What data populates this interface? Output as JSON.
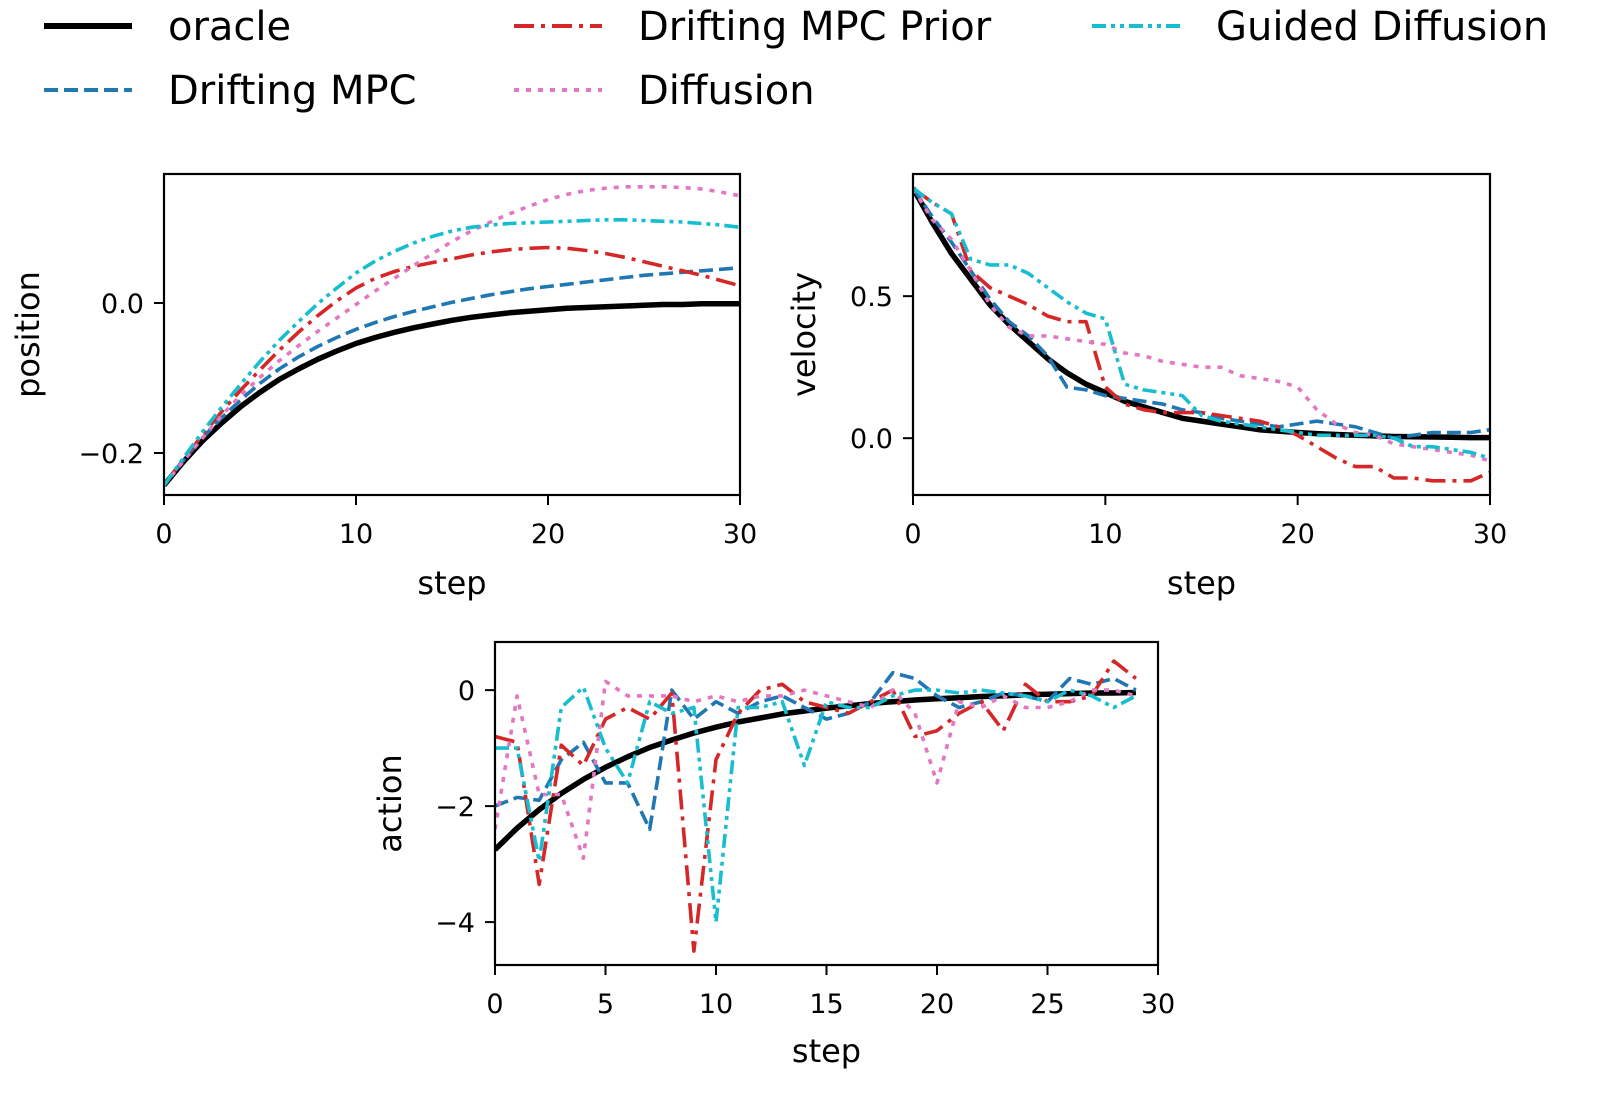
{
  "legend": {
    "placement": "top",
    "entries": [
      {
        "key": "oracle",
        "label": "oracle",
        "color": "#000000",
        "style": "solid"
      },
      {
        "key": "drifting_mpc",
        "label": "Drifting MPC",
        "color": "#1f77b4",
        "style": "dashed"
      },
      {
        "key": "drifting_mpc_prior",
        "label": "Drifting MPC Prior",
        "color": "#d62728",
        "style": "dashdot"
      },
      {
        "key": "diffusion",
        "label": "Diffusion",
        "color": "#e377c2",
        "style": "dotted"
      },
      {
        "key": "guided_diffusion",
        "label": "Guided Diffusion",
        "color": "#17becf",
        "style": "dashdotdot"
      }
    ]
  },
  "chart_data": [
    {
      "id": "position",
      "type": "line",
      "title": "",
      "xlabel": "step",
      "ylabel": "position",
      "xlim": [
        0,
        30
      ],
      "ylim": [
        -0.256,
        0.172
      ],
      "xticks": [
        0,
        10,
        20,
        30
      ],
      "xtick_labels": [
        "0",
        "10",
        "20",
        "30"
      ],
      "yticks": [
        -0.2,
        0.0
      ],
      "ytick_labels": [
        "−0.2",
        "0.0"
      ],
      "grid": false,
      "x": [
        0,
        1,
        2,
        3,
        4,
        5,
        6,
        7,
        8,
        9,
        10,
        11,
        12,
        13,
        14,
        15,
        16,
        17,
        18,
        19,
        20,
        21,
        22,
        23,
        24,
        25,
        26,
        27,
        28,
        29,
        30
      ],
      "series": [
        {
          "key": "oracle",
          "values": [
            -0.243,
            -0.212,
            -0.184,
            -0.16,
            -0.138,
            -0.119,
            -0.102,
            -0.088,
            -0.075,
            -0.064,
            -0.054,
            -0.046,
            -0.039,
            -0.033,
            -0.028,
            -0.023,
            -0.019,
            -0.016,
            -0.013,
            -0.011,
            -0.009,
            -0.007,
            -0.006,
            -0.005,
            -0.004,
            -0.003,
            -0.002,
            -0.002,
            -0.001,
            -0.001,
            -0.001
          ]
        },
        {
          "key": "drifting_mpc",
          "values": [
            -0.243,
            -0.21,
            -0.18,
            -0.153,
            -0.129,
            -0.107,
            -0.088,
            -0.072,
            -0.058,
            -0.046,
            -0.035,
            -0.026,
            -0.018,
            -0.011,
            -0.005,
            0.001,
            0.006,
            0.011,
            0.015,
            0.019,
            0.022,
            0.025,
            0.028,
            0.031,
            0.034,
            0.037,
            0.039,
            0.041,
            0.043,
            0.045,
            0.047
          ]
        },
        {
          "key": "drifting_mpc_prior",
          "values": [
            -0.243,
            -0.209,
            -0.176,
            -0.145,
            -0.116,
            -0.089,
            -0.063,
            -0.039,
            -0.017,
            0.003,
            0.02,
            0.033,
            0.042,
            0.049,
            0.054,
            0.059,
            0.064,
            0.068,
            0.071,
            0.073,
            0.074,
            0.073,
            0.07,
            0.066,
            0.061,
            0.055,
            0.049,
            0.043,
            0.037,
            0.03,
            0.023
          ]
        },
        {
          "key": "diffusion",
          "values": [
            -0.243,
            -0.211,
            -0.18,
            -0.15,
            -0.123,
            -0.099,
            -0.077,
            -0.057,
            -0.038,
            -0.02,
            -0.002,
            0.016,
            0.033,
            0.05,
            0.066,
            0.082,
            0.096,
            0.108,
            0.119,
            0.129,
            0.138,
            0.145,
            0.15,
            0.153,
            0.155,
            0.155,
            0.155,
            0.154,
            0.152,
            0.148,
            0.143
          ]
        },
        {
          "key": "guided_diffusion",
          "values": [
            -0.243,
            -0.207,
            -0.172,
            -0.139,
            -0.108,
            -0.078,
            -0.05,
            -0.025,
            -0.001,
            0.02,
            0.04,
            0.056,
            0.069,
            0.08,
            0.089,
            0.096,
            0.101,
            0.104,
            0.106,
            0.107,
            0.108,
            0.109,
            0.11,
            0.111,
            0.111,
            0.11,
            0.109,
            0.108,
            0.106,
            0.104,
            0.101
          ]
        }
      ]
    },
    {
      "id": "velocity",
      "type": "line",
      "title": "",
      "xlabel": "step",
      "ylabel": "velocity",
      "xlim": [
        0,
        30
      ],
      "ylim": [
        -0.2,
        0.93
      ],
      "xticks": [
        0,
        10,
        20,
        30
      ],
      "xtick_labels": [
        "0",
        "10",
        "20",
        "30"
      ],
      "yticks": [
        0.0,
        0.5
      ],
      "ytick_labels": [
        "0.0",
        "0.5"
      ],
      "grid": false,
      "x": [
        0,
        1,
        2,
        3,
        4,
        5,
        6,
        7,
        8,
        9,
        10,
        11,
        12,
        13,
        14,
        15,
        16,
        17,
        18,
        19,
        20,
        21,
        22,
        23,
        24,
        25,
        26,
        27,
        28,
        29,
        30
      ],
      "series": [
        {
          "key": "oracle",
          "values": [
            0.88,
            0.76,
            0.65,
            0.56,
            0.47,
            0.4,
            0.34,
            0.28,
            0.23,
            0.19,
            0.16,
            0.13,
            0.11,
            0.09,
            0.07,
            0.06,
            0.05,
            0.04,
            0.03,
            0.025,
            0.02,
            0.016,
            0.013,
            0.01,
            0.008,
            0.006,
            0.005,
            0.004,
            0.003,
            0.002,
            0.002
          ]
        },
        {
          "key": "drifting_mpc",
          "values": [
            0.88,
            0.78,
            0.69,
            0.59,
            0.49,
            0.41,
            0.36,
            0.29,
            0.18,
            0.17,
            0.15,
            0.14,
            0.13,
            0.12,
            0.1,
            0.09,
            0.07,
            0.06,
            0.05,
            0.04,
            0.05,
            0.06,
            0.05,
            0.04,
            0.02,
            0.0,
            0.01,
            0.02,
            0.02,
            0.02,
            0.03
          ]
        },
        {
          "key": "drifting_mpc_prior",
          "values": [
            0.88,
            0.83,
            0.79,
            0.59,
            0.53,
            0.5,
            0.47,
            0.43,
            0.41,
            0.41,
            0.18,
            0.12,
            0.1,
            0.09,
            0.09,
            0.09,
            0.08,
            0.07,
            0.06,
            0.04,
            0.01,
            -0.03,
            -0.07,
            -0.1,
            -0.1,
            -0.14,
            -0.14,
            -0.15,
            -0.15,
            -0.15,
            -0.12
          ]
        },
        {
          "key": "diffusion",
          "values": [
            0.88,
            0.77,
            0.7,
            0.59,
            0.47,
            0.39,
            0.36,
            0.36,
            0.35,
            0.34,
            0.33,
            0.3,
            0.29,
            0.27,
            0.26,
            0.25,
            0.25,
            0.22,
            0.21,
            0.2,
            0.18,
            0.1,
            0.05,
            0.02,
            0.01,
            -0.02,
            -0.03,
            -0.04,
            -0.05,
            -0.06,
            -0.08
          ]
        },
        {
          "key": "guided_diffusion",
          "values": [
            0.88,
            0.83,
            0.79,
            0.63,
            0.61,
            0.61,
            0.58,
            0.53,
            0.48,
            0.44,
            0.42,
            0.19,
            0.17,
            0.16,
            0.15,
            0.08,
            0.06,
            0.05,
            0.04,
            0.03,
            0.02,
            0.01,
            0.01,
            0.01,
            0.01,
            0.0,
            -0.03,
            -0.03,
            -0.04,
            -0.05,
            -0.07
          ]
        }
      ]
    },
    {
      "id": "action",
      "type": "line",
      "title": "",
      "xlabel": "step",
      "ylabel": "action",
      "xlim": [
        0,
        30
      ],
      "ylim": [
        -4.74,
        0.83
      ],
      "xticks": [
        0,
        5,
        10,
        15,
        20,
        25,
        30
      ],
      "xtick_labels": [
        "0",
        "5",
        "10",
        "15",
        "20",
        "25",
        "30"
      ],
      "yticks": [
        -4,
        -2,
        0
      ],
      "ytick_labels": [
        "−4",
        "−2",
        "0"
      ],
      "grid": false,
      "x": [
        0,
        1,
        2,
        3,
        4,
        5,
        6,
        7,
        8,
        9,
        10,
        11,
        12,
        13,
        14,
        15,
        16,
        17,
        18,
        19,
        20,
        21,
        22,
        23,
        24,
        25,
        26,
        27,
        28,
        29
      ],
      "series": [
        {
          "key": "oracle",
          "values": [
            -2.75,
            -2.38,
            -2.06,
            -1.78,
            -1.54,
            -1.33,
            -1.15,
            -0.99,
            -0.86,
            -0.74,
            -0.64,
            -0.55,
            -0.48,
            -0.41,
            -0.36,
            -0.31,
            -0.27,
            -0.23,
            -0.2,
            -0.17,
            -0.15,
            -0.13,
            -0.11,
            -0.1,
            -0.08,
            -0.07,
            -0.06,
            -0.05,
            -0.05,
            -0.04
          ]
        },
        {
          "key": "drifting_mpc",
          "values": [
            -2.0,
            -1.85,
            -1.9,
            -1.2,
            -0.9,
            -1.6,
            -1.6,
            -2.4,
            0.0,
            -0.5,
            -0.2,
            -0.4,
            -0.2,
            -0.1,
            -0.3,
            -0.5,
            -0.4,
            -0.2,
            0.3,
            0.2,
            -0.1,
            -0.3,
            -0.2,
            -0.05,
            -0.1,
            -0.2,
            0.2,
            0.1,
            0.2,
            0.0
          ]
        },
        {
          "key": "drifting_mpc_prior",
          "values": [
            -0.8,
            -0.9,
            -3.35,
            -0.95,
            -1.3,
            -0.5,
            -0.3,
            -0.5,
            -0.05,
            -4.5,
            -1.2,
            -0.4,
            0.0,
            0.1,
            -0.2,
            -0.3,
            -0.4,
            -0.2,
            0.0,
            -0.8,
            -0.7,
            -0.4,
            -0.2,
            -0.7,
            0.1,
            -0.2,
            -0.2,
            -0.1,
            0.5,
            0.2
          ]
        },
        {
          "key": "diffusion",
          "values": [
            -2.4,
            -0.1,
            -1.8,
            -1.8,
            -2.9,
            0.15,
            -0.1,
            -0.1,
            -0.1,
            -0.2,
            -0.1,
            -0.2,
            -0.1,
            -0.1,
            0.0,
            -0.1,
            -0.2,
            -0.3,
            0.0,
            -0.4,
            -1.6,
            -0.2,
            -0.3,
            -0.1,
            -0.3,
            -0.3,
            -0.2,
            0.0,
            0.0,
            -0.1
          ]
        },
        {
          "key": "guided_diffusion",
          "values": [
            -1.0,
            -1.0,
            -2.95,
            -0.3,
            0.05,
            -1.0,
            -1.6,
            -0.2,
            -0.4,
            -0.3,
            -4.0,
            -0.3,
            -0.3,
            -0.2,
            -1.3,
            -0.2,
            -0.3,
            -0.3,
            -0.1,
            0.0,
            0.0,
            -0.05,
            0.0,
            -0.05,
            -0.1,
            -0.2,
            0.0,
            -0.1,
            -0.3,
            -0.1
          ]
        }
      ]
    }
  ]
}
